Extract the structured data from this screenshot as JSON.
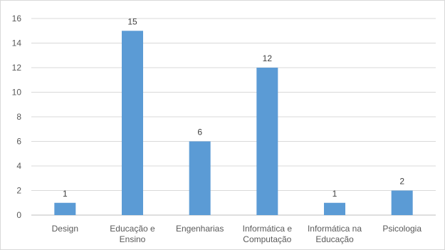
{
  "chart_data": {
    "type": "bar",
    "title": "",
    "xlabel": "",
    "ylabel": "",
    "categories": [
      [
        "Design"
      ],
      [
        "Educação e",
        "Ensino"
      ],
      [
        "Engenharias"
      ],
      [
        "Informática e",
        "Computação"
      ],
      [
        "Informática na",
        "Educação"
      ],
      [
        "Psicologia"
      ]
    ],
    "values": [
      1,
      15,
      6,
      12,
      1,
      2
    ],
    "ylim": [
      0,
      16
    ],
    "yticks": [
      0,
      2,
      4,
      6,
      8,
      10,
      12,
      14,
      16
    ],
    "grid": true,
    "legend": "none",
    "bar_color": "#5b9bd5"
  }
}
